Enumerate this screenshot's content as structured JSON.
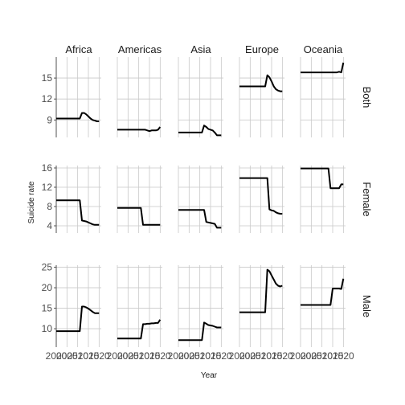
{
  "chart_data": {
    "type": "line",
    "xlabel": "Year",
    "ylabel": "Suicide rate",
    "columns": [
      "Africa",
      "Americas",
      "Asia",
      "Europe",
      "Oceania"
    ],
    "rows": [
      {
        "label": "Both",
        "yticks": [
          9,
          12,
          15
        ],
        "ylim": [
          6.5,
          18
        ]
      },
      {
        "label": "Female",
        "yticks": [
          4,
          8,
          12,
          16
        ],
        "ylim": [
          2.5,
          16.5
        ]
      },
      {
        "label": "Male",
        "yticks": [
          10,
          15,
          20,
          25
        ],
        "ylim": [
          5.5,
          25.5
        ]
      }
    ],
    "xlim": [
      2000,
      2021
    ],
    "xticks": [
      2000,
      2005,
      2010,
      2015,
      2020
    ],
    "xtick_labels": [
      "2000",
      "2005",
      "2010",
      "2015",
      "2020"
    ],
    "series": {
      "Both": {
        "Africa": {
          "x": [
            2000,
            2011,
            2012,
            2013,
            2014,
            2015,
            2016,
            2017,
            2018,
            2019,
            2020
          ],
          "y": [
            9.2,
            9.2,
            10.0,
            10.0,
            9.8,
            9.5,
            9.2,
            9.0,
            8.9,
            8.8,
            8.8
          ]
        },
        "Americas": {
          "x": [
            2000,
            2011,
            2012,
            2013,
            2014,
            2015,
            2016,
            2017,
            2018,
            2019,
            2020
          ],
          "y": [
            7.6,
            7.6,
            7.6,
            7.6,
            7.5,
            7.4,
            7.5,
            7.5,
            7.5,
            7.6,
            8.0
          ]
        },
        "Asia": {
          "x": [
            2000,
            2011,
            2012,
            2013,
            2014,
            2015,
            2016,
            2017,
            2018,
            2019,
            2020
          ],
          "y": [
            7.2,
            7.2,
            8.2,
            8.0,
            7.7,
            7.6,
            7.5,
            7.2,
            6.8,
            6.8,
            6.8
          ]
        },
        "Europe": {
          "x": [
            2000,
            2011,
            2012,
            2013,
            2014,
            2015,
            2016,
            2017,
            2018,
            2019,
            2020
          ],
          "y": [
            13.8,
            13.8,
            13.8,
            15.4,
            15.1,
            14.5,
            13.8,
            13.4,
            13.2,
            13.1,
            13.1
          ]
        },
        "Oceania": {
          "x": [
            2000,
            2011,
            2012,
            2013,
            2014,
            2015,
            2016,
            2017,
            2018,
            2019,
            2020
          ],
          "y": [
            15.8,
            15.8,
            15.8,
            15.8,
            15.8,
            15.8,
            15.8,
            15.8,
            15.9,
            15.8,
            17.2
          ]
        }
      },
      "Female": {
        "Africa": {
          "x": [
            2000,
            2011,
            2012,
            2013,
            2014,
            2015,
            2016,
            2017,
            2018,
            2019,
            2020
          ],
          "y": [
            9.3,
            9.3,
            5.1,
            5.0,
            4.9,
            4.7,
            4.5,
            4.3,
            4.2,
            4.2,
            4.2
          ]
        },
        "Americas": {
          "x": [
            2000,
            2011,
            2012,
            2013,
            2014,
            2015,
            2016,
            2017,
            2018,
            2019,
            2020
          ],
          "y": [
            7.7,
            7.7,
            4.2,
            4.2,
            4.2,
            4.2,
            4.2,
            4.2,
            4.2,
            4.2,
            4.2
          ]
        },
        "Asia": {
          "x": [
            2000,
            2011,
            2012,
            2013,
            2014,
            2015,
            2016,
            2017,
            2018,
            2019,
            2020
          ],
          "y": [
            7.3,
            7.3,
            7.3,
            4.8,
            4.7,
            4.6,
            4.5,
            4.4,
            3.6,
            3.6,
            3.6
          ]
        },
        "Europe": {
          "x": [
            2000,
            2011,
            2012,
            2013,
            2014,
            2015,
            2016,
            2017,
            2018,
            2019,
            2020
          ],
          "y": [
            13.9,
            13.9,
            13.9,
            13.9,
            7.4,
            7.2,
            7.1,
            6.8,
            6.6,
            6.5,
            6.5
          ]
        },
        "Oceania": {
          "x": [
            2000,
            2011,
            2012,
            2013,
            2014,
            2015,
            2016,
            2017,
            2018,
            2019,
            2020
          ],
          "y": [
            15.9,
            15.9,
            15.9,
            15.9,
            11.8,
            11.8,
            11.8,
            11.8,
            11.8,
            12.6,
            12.6
          ]
        }
      },
      "Male": {
        "Africa": {
          "x": [
            2000,
            2011,
            2012,
            2013,
            2014,
            2015,
            2016,
            2017,
            2018,
            2019,
            2020
          ],
          "y": [
            9.4,
            9.4,
            15.4,
            15.4,
            15.2,
            14.9,
            14.5,
            14.1,
            13.8,
            13.8,
            13.8
          ]
        },
        "Americas": {
          "x": [
            2000,
            2011,
            2012,
            2013,
            2014,
            2015,
            2016,
            2017,
            2018,
            2019,
            2020
          ],
          "y": [
            7.6,
            7.6,
            11.1,
            11.1,
            11.2,
            11.2,
            11.3,
            11.3,
            11.4,
            11.4,
            12.2
          ]
        },
        "Asia": {
          "x": [
            2000,
            2011,
            2012,
            2013,
            2014,
            2015,
            2016,
            2017,
            2018,
            2019,
            2020
          ],
          "y": [
            7.2,
            7.2,
            11.5,
            11.2,
            10.9,
            10.8,
            10.7,
            10.5,
            10.3,
            10.3,
            10.3
          ]
        },
        "Europe": {
          "x": [
            2000,
            2011,
            2012,
            2013,
            2014,
            2015,
            2016,
            2017,
            2018,
            2019,
            2020
          ],
          "y": [
            14.0,
            14.0,
            14.0,
            24.4,
            24.0,
            23.0,
            22.0,
            21.0,
            20.5,
            20.3,
            20.5
          ]
        },
        "Oceania": {
          "x": [
            2000,
            2011,
            2012,
            2013,
            2014,
            2015,
            2016,
            2017,
            2018,
            2019,
            2020
          ],
          "y": [
            15.8,
            15.8,
            15.8,
            15.8,
            15.8,
            19.8,
            19.8,
            19.8,
            19.8,
            19.7,
            22.2
          ]
        }
      }
    }
  }
}
